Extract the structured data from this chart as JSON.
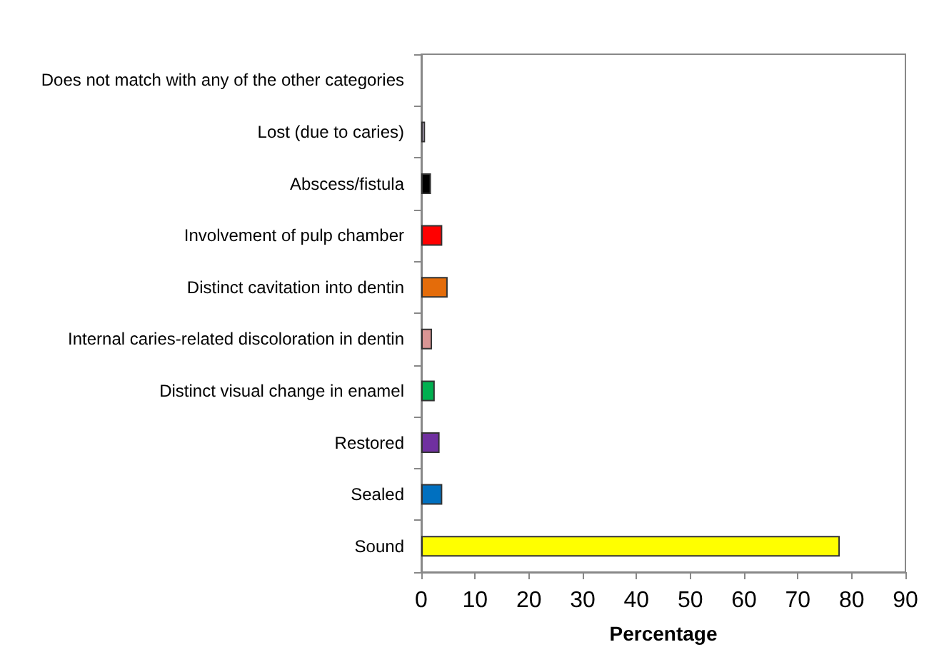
{
  "chart_data": {
    "type": "bar",
    "orientation": "horizontal",
    "xlabel": "Percentage",
    "categories": [
      "Does not match with any of the other categories",
      "Lost (due to caries)",
      "Abscess/fistula",
      "Involvement of pulp chamber",
      "Distinct cavitation into dentin",
      "Internal caries-related discoloration in dentin",
      "Distinct visual change in enamel",
      "Restored",
      "Sealed",
      "Sound"
    ],
    "values": [
      0,
      0.7,
      1.8,
      3.9,
      4.9,
      2.0,
      2.5,
      3.4,
      3.9,
      77.8
    ],
    "colors": [
      "#ffffff",
      "#ccc0da",
      "#000000",
      "#ff0000",
      "#e46c0a",
      "#d99594",
      "#00b050",
      "#7030a0",
      "#0070c0",
      "#ffff00"
    ],
    "xlim": [
      0,
      90
    ],
    "xticks": [
      0,
      10,
      20,
      30,
      40,
      50,
      60,
      70,
      80,
      90
    ],
    "grid": false
  }
}
